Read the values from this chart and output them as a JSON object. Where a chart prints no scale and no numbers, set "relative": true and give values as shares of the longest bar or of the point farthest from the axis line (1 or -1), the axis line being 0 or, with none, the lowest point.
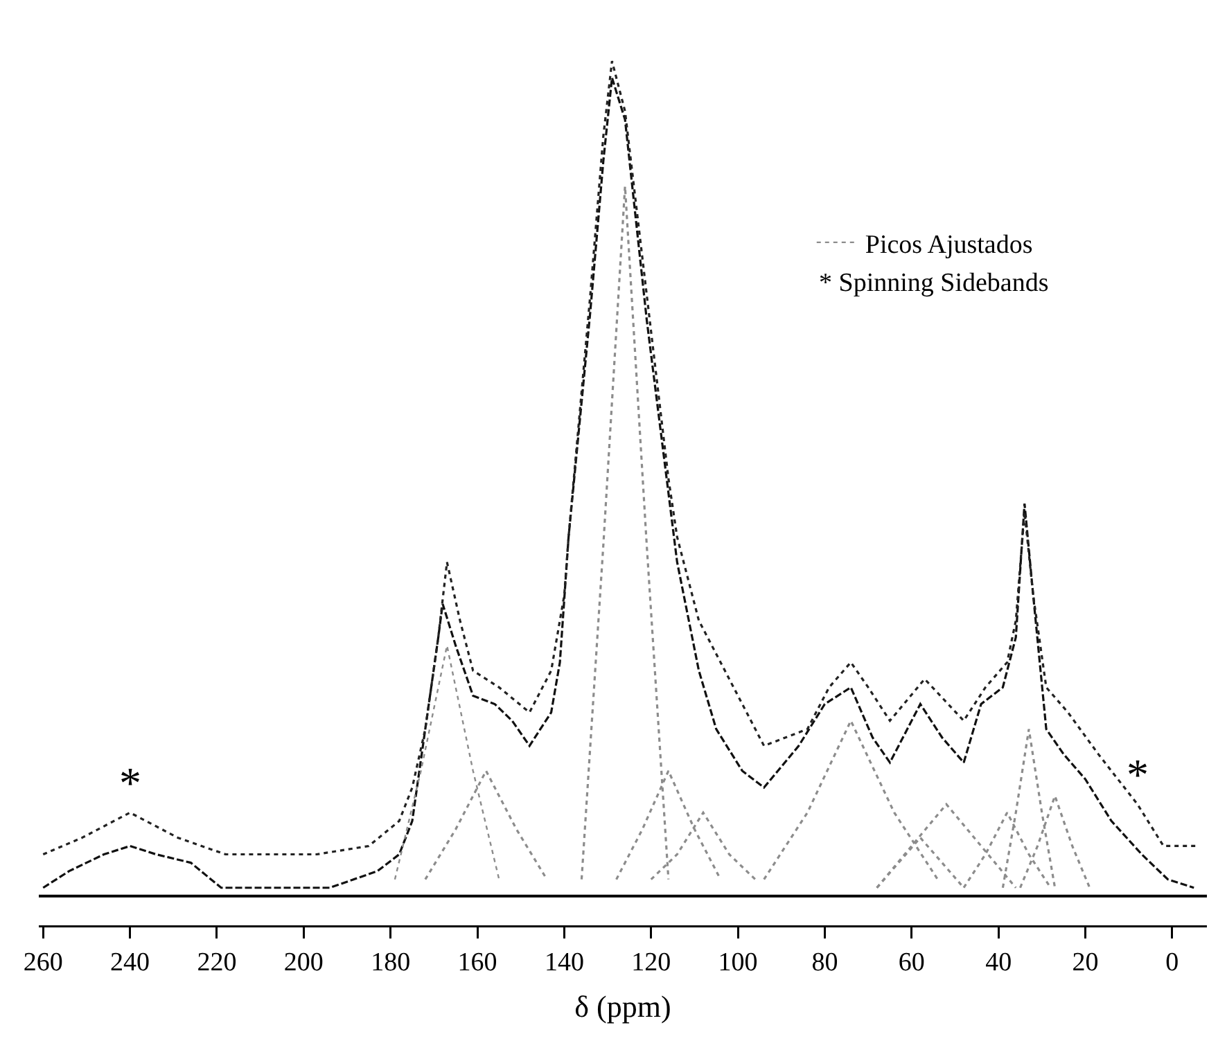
{
  "chart_data": {
    "type": "line",
    "relative": true,
    "xlabel": "δ (ppm)",
    "xlim": [
      261,
      -8
    ],
    "xticks": [
      260,
      240,
      220,
      200,
      180,
      160,
      140,
      120,
      100,
      80,
      60,
      40,
      20,
      0
    ],
    "grid": false,
    "legend": "top right",
    "tick_labels": "x",
    "marker": "none",
    "ref_lines": [
      {
        "axis": "y",
        "value": 0,
        "color": "#000000",
        "line_style": "solid"
      }
    ],
    "annotations": [
      "* Spinning Sidebands",
      {
        "text": "*",
        "x": 240,
        "y": 0.1
      },
      {
        "text": "*",
        "x": 8,
        "y": 0.11
      }
    ],
    "series": [
      {
        "color": "#111111",
        "line_style": "dashed",
        "x": [
          260,
          254,
          246,
          240,
          234,
          226,
          219,
          207,
          194,
          183,
          178,
          175,
          172,
          169,
          168,
          165,
          161,
          156,
          152,
          148,
          143,
          141,
          139,
          134,
          131,
          129,
          126,
          121,
          114,
          109,
          105,
          99,
          94,
          86,
          80,
          74,
          69,
          65,
          58,
          53,
          48,
          44,
          39,
          36,
          34,
          32,
          29,
          25,
          20,
          14,
          7,
          1,
          -5
        ],
        "values": [
          0.01,
          0.03,
          0.05,
          0.06,
          0.05,
          0.04,
          0.01,
          0.01,
          0.01,
          0.03,
          0.05,
          0.09,
          0.2,
          0.31,
          0.35,
          0.3,
          0.24,
          0.23,
          0.21,
          0.18,
          0.22,
          0.28,
          0.43,
          0.7,
          0.88,
          0.98,
          0.93,
          0.69,
          0.4,
          0.27,
          0.2,
          0.15,
          0.13,
          0.18,
          0.23,
          0.25,
          0.19,
          0.16,
          0.23,
          0.19,
          0.16,
          0.23,
          0.25,
          0.31,
          0.47,
          0.36,
          0.2,
          0.17,
          0.14,
          0.09,
          0.05,
          0.02,
          0.01
        ]
      },
      {
        "color": "#222222",
        "line_style": "dotted",
        "x": [
          260,
          251,
          240,
          229,
          218,
          197,
          185,
          178,
          175,
          172,
          169,
          167,
          164,
          161,
          155,
          148,
          143,
          140,
          139,
          134,
          131,
          129,
          126,
          121,
          116,
          114,
          109,
          103,
          94,
          84,
          79,
          74,
          70,
          65,
          57,
          48,
          43,
          38,
          36,
          34,
          32,
          29,
          24,
          17,
          8,
          2,
          -6
        ],
        "values": [
          0.05,
          0.07,
          0.1,
          0.07,
          0.05,
          0.05,
          0.06,
          0.09,
          0.13,
          0.2,
          0.31,
          0.4,
          0.33,
          0.27,
          0.25,
          0.22,
          0.27,
          0.36,
          0.43,
          0.72,
          0.91,
          1,
          0.94,
          0.72,
          0.5,
          0.43,
          0.33,
          0.27,
          0.18,
          0.2,
          0.25,
          0.28,
          0.25,
          0.21,
          0.26,
          0.21,
          0.25,
          0.28,
          0.33,
          0.46,
          0.36,
          0.25,
          0.22,
          0.17,
          0.11,
          0.06,
          0.06
        ]
      },
      {
        "name": "Picos Ajustados",
        "color": "#8c8c8c",
        "line_style": "dotted",
        "x": [
          179,
          173,
          167,
          161,
          155
        ],
        "values": [
          0.02,
          0.15,
          0.3,
          0.15,
          0.02
        ]
      },
      {
        "color": "#8c8c8c",
        "line_style": "dotted",
        "x": [
          172,
          165,
          158,
          151,
          144
        ],
        "values": [
          0.02,
          0.08,
          0.15,
          0.08,
          0.02
        ]
      },
      {
        "color": "#8c8c8c",
        "line_style": "dotted",
        "x": [
          136,
          131,
          126,
          121,
          116
        ],
        "values": [
          0.02,
          0.42,
          0.85,
          0.42,
          0.02
        ]
      },
      {
        "color": "#8c8c8c",
        "line_style": "dotted",
        "x": [
          128,
          122,
          116,
          110,
          104
        ],
        "values": [
          0.02,
          0.08,
          0.15,
          0.08,
          0.02
        ]
      },
      {
        "color": "#8c8c8c",
        "line_style": "dotted",
        "x": [
          120,
          114,
          108,
          102,
          96
        ],
        "values": [
          0.02,
          0.05,
          0.1,
          0.05,
          0.02
        ]
      },
      {
        "color": "#8c8c8c",
        "line_style": "dotted",
        "x": [
          94,
          84,
          74,
          64,
          54
        ],
        "values": [
          0.02,
          0.1,
          0.21,
          0.1,
          0.02
        ]
      },
      {
        "color": "#8c8c8c",
        "line_style": "dotted",
        "x": [
          68,
          63,
          58,
          53,
          48
        ],
        "values": [
          0.01,
          0.04,
          0.07,
          0.04,
          0.01
        ]
      },
      {
        "color": "#8c8c8c",
        "line_style": "dotted",
        "x": [
          68,
          60,
          52,
          44,
          36
        ],
        "values": [
          0.01,
          0.06,
          0.11,
          0.06,
          0.01
        ]
      },
      {
        "color": "#8c8c8c",
        "line_style": "dotted",
        "x": [
          48,
          43,
          38,
          33,
          28
        ],
        "values": [
          0.01,
          0.05,
          0.1,
          0.05,
          0.01
        ]
      },
      {
        "color": "#8c8c8c",
        "line_style": "dotted",
        "x": [
          39,
          36,
          33,
          30,
          27
        ],
        "values": [
          0.01,
          0.1,
          0.2,
          0.1,
          0.01
        ]
      },
      {
        "color": "#8c8c8c",
        "line_style": "dotted",
        "x": [
          35,
          31,
          27,
          23,
          19
        ],
        "values": [
          0.01,
          0.06,
          0.12,
          0.06,
          0.01
        ]
      }
    ]
  }
}
